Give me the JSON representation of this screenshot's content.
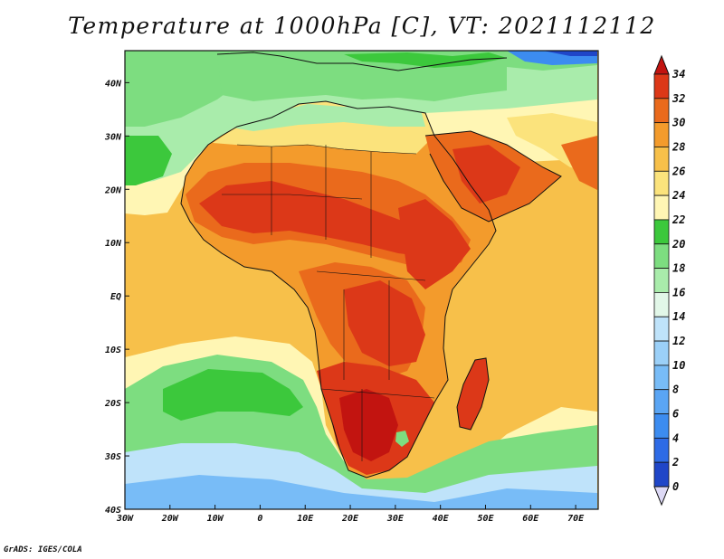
{
  "title": "Temperature at 1000hPa [C], VT: 2021112112",
  "credit": "GrADS: IGES/COLA",
  "map": {
    "region": "Africa",
    "variable": "Temperature at 1000hPa",
    "unit": "C",
    "lon_range": [
      -30,
      75
    ],
    "lat_range": [
      -40,
      46
    ],
    "lat_ticks": [
      {
        "value": 40,
        "label": "40N"
      },
      {
        "value": 30,
        "label": "30N"
      },
      {
        "value": 20,
        "label": "20N"
      },
      {
        "value": 10,
        "label": "10N"
      },
      {
        "value": 0,
        "label": "EQ"
      },
      {
        "value": -10,
        "label": "10S"
      },
      {
        "value": -20,
        "label": "20S"
      },
      {
        "value": -30,
        "label": "30S"
      },
      {
        "value": -40,
        "label": "40S"
      }
    ],
    "lon_ticks": [
      {
        "value": -30,
        "label": "30W"
      },
      {
        "value": -20,
        "label": "20W"
      },
      {
        "value": -10,
        "label": "10W"
      },
      {
        "value": 0,
        "label": "0"
      },
      {
        "value": 10,
        "label": "10E"
      },
      {
        "value": 20,
        "label": "20E"
      },
      {
        "value": 30,
        "label": "30E"
      },
      {
        "value": 40,
        "label": "40E"
      },
      {
        "value": 50,
        "label": "50E"
      },
      {
        "value": 60,
        "label": "60E"
      },
      {
        "value": 70,
        "label": "70E"
      }
    ]
  },
  "colorbar": {
    "levels": [
      0,
      2,
      4,
      6,
      8,
      10,
      12,
      14,
      16,
      18,
      20,
      22,
      24,
      26,
      28,
      30,
      32,
      34
    ],
    "colors": [
      "#0a1e8c",
      "#1f46c8",
      "#2e6be6",
      "#3c8cf0",
      "#5aa5f4",
      "#78bcf7",
      "#9bd0f8",
      "#bfe3fa",
      "#e2f7e8",
      "#a9ecab",
      "#7ddd80",
      "#3cc83c",
      "#fff6b4",
      "#fbe37c",
      "#f7c04a",
      "#f39b2c",
      "#ea6a1c",
      "#dc3818",
      "#c21410"
    ],
    "under_color": "#ddd9f5",
    "over_color": "#c21410"
  }
}
